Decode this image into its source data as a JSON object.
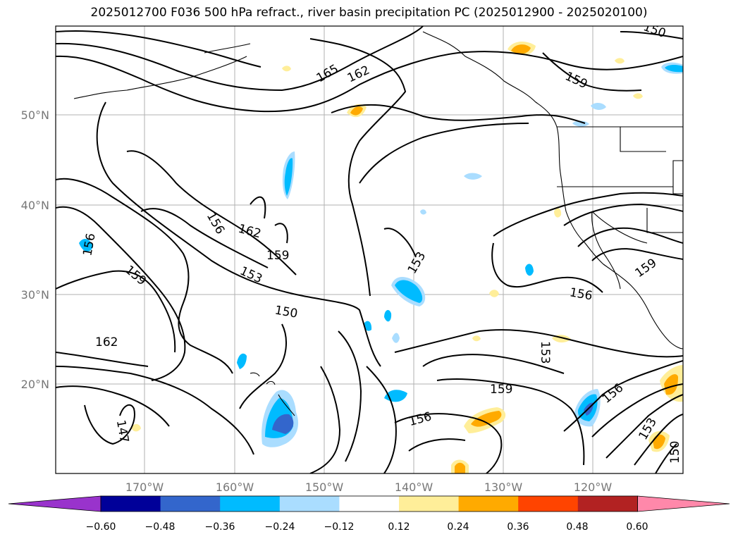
{
  "title": "2025012700 F036 500 hPa refract., river basin precipitation PC (2025012900 - 2025020100)",
  "axes": {
    "lon_ticks": [
      "170°W",
      "160°W",
      "150°W",
      "140°W",
      "130°W",
      "120°W"
    ],
    "lat_ticks": [
      "50°N",
      "40°N",
      "30°N",
      "20°N"
    ]
  },
  "contour_labels": [
    "165",
    "162",
    "159",
    "156",
    "153",
    "150",
    "147",
    "162",
    "159",
    "156",
    "153",
    "150",
    "162",
    "159",
    "156",
    "153",
    "159",
    "156",
    "153",
    "150",
    "156",
    "159"
  ],
  "colorbar": {
    "colors": [
      "#9933cc",
      "#000099",
      "#3366cc",
      "#00bbff",
      "#aaddff",
      "#ffffff",
      "#ffee99",
      "#ffaa00",
      "#ff4400",
      "#b22222",
      "#ff88aa"
    ],
    "ticks": [
      "−0.60",
      "−0.48",
      "−0.36",
      "−0.24",
      "−0.12",
      "0.12",
      "0.24",
      "0.36",
      "0.48",
      "0.60"
    ]
  }
}
